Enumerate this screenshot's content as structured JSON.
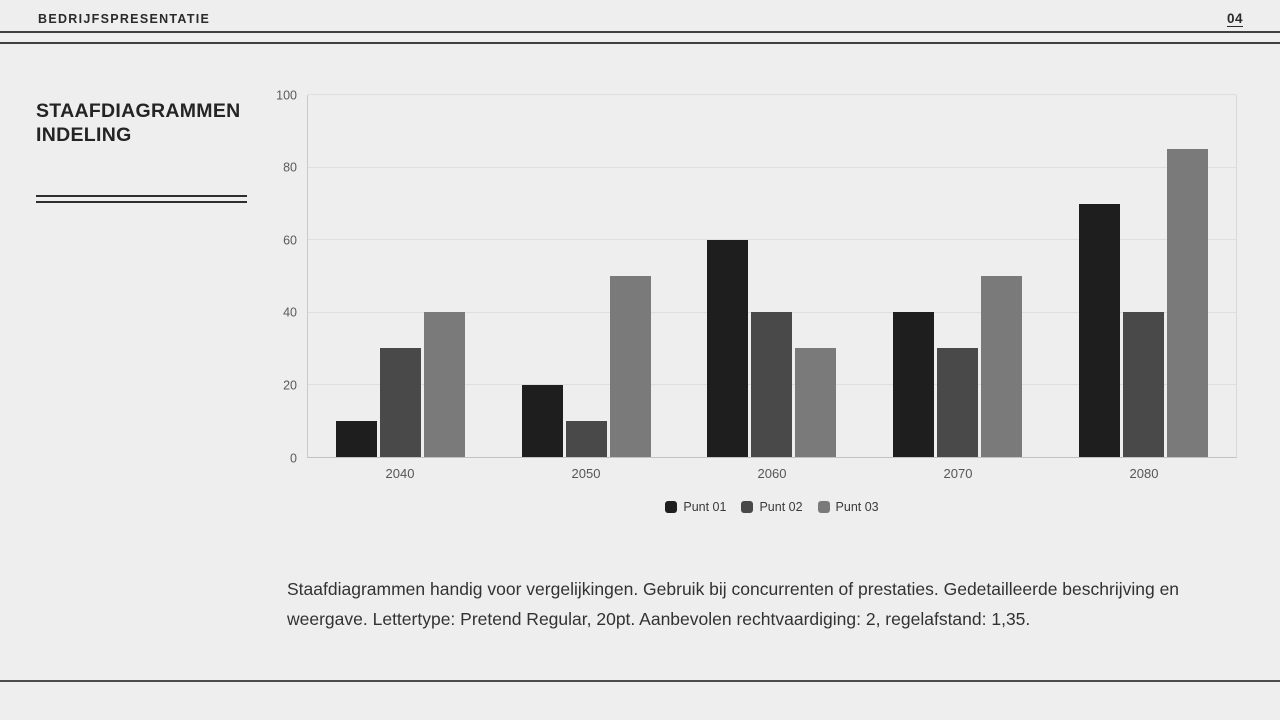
{
  "header": {
    "brand": "BEDRIJFSPRESENTATIE",
    "page_number": "04"
  },
  "sidebar": {
    "title": "STAAFDIAGRAMMEN INDELING"
  },
  "chart_data": {
    "type": "bar",
    "title": "",
    "xlabel": "",
    "ylabel": "",
    "categories": [
      "2040",
      "2050",
      "2060",
      "2070",
      "2080"
    ],
    "series": [
      {
        "name": "Punt 01",
        "color": "#1e1e1e",
        "values": [
          10,
          20,
          60,
          40,
          70
        ]
      },
      {
        "name": "Punt 02",
        "color": "#494949",
        "values": [
          30,
          10,
          40,
          30,
          40
        ]
      },
      {
        "name": "Punt 03",
        "color": "#7a7a7a",
        "values": [
          40,
          50,
          30,
          50,
          85
        ]
      }
    ],
    "ylim": [
      0,
      100
    ],
    "ytick_step": 20,
    "grid": true,
    "legend_position": "bottom"
  },
  "body": {
    "paragraph": "Staafdiagrammen handig voor vergelijkingen. Gebruik bij concurrenten of prestaties. Gedetailleerde beschrijving en weergave. Lettertype: Pretend Regular, 20pt. Aanbevolen rechtvaardiging: 2, regelafstand: 1,35."
  },
  "colors": {
    "background": "#eeeeee",
    "rule": "#3f3f3f",
    "gridline": "#dedede",
    "axis": "#c9c9c9",
    "tick_text": "#5a5a5a",
    "body_text": "#323232"
  }
}
